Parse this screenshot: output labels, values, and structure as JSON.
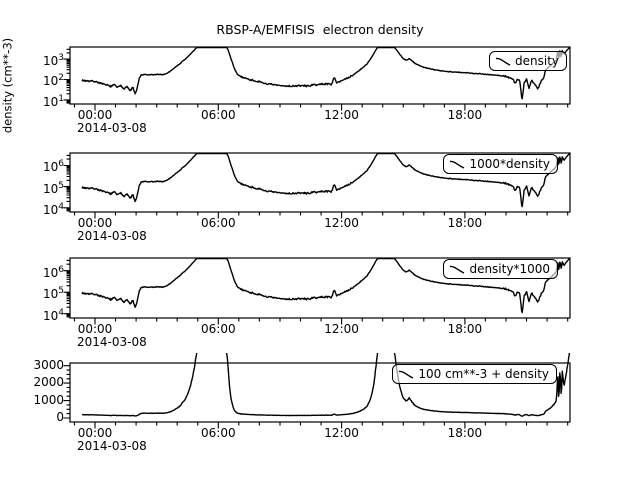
{
  "title": "RBSP-A/EMFISIS  electron density",
  "ylabel": "density (cm**-3)",
  "date_label": "2014-03-08",
  "colors": {
    "line": "#000000",
    "frame": "#000000",
    "background": "#ffffff",
    "text": "#000000",
    "legend_border": "#000000",
    "legend_bg": "rgba(255,255,255,0.62)",
    "curve_under_legend_appears": "#9a9a9a"
  },
  "x_axis": {
    "major_ticks": [
      {
        "t": 0,
        "label": "00:00"
      },
      {
        "t": 6,
        "label": "06:00"
      },
      {
        "t": 12,
        "label": "12:00"
      },
      {
        "t": 18,
        "label": "18:00"
      }
    ],
    "minor_step_hours": 1,
    "t_min": -1.217,
    "t_max": 23.114
  },
  "panels": [
    {
      "legend_label": "density",
      "scale": "log",
      "p_min": 6.3,
      "p_max": 3900,
      "mult": 1,
      "add": 0,
      "y_ticks": [
        {
          "p": 10,
          "label": "10^1"
        },
        {
          "p": 100,
          "label": "10^2"
        },
        {
          "p": 1000,
          "label": "10^3"
        }
      ]
    },
    {
      "legend_label": "1000*density",
      "scale": "log",
      "p_min": 6300,
      "p_max": 3900000,
      "mult": 1000,
      "add": 0,
      "y_ticks": [
        {
          "p": 10000,
          "label": "10^4"
        },
        {
          "p": 100000,
          "label": "10^5"
        },
        {
          "p": 1000000,
          "label": "10^6"
        }
      ]
    },
    {
      "legend_label": "density*1000",
      "scale": "log",
      "p_min": 6300,
      "p_max": 3900000,
      "mult": 1000,
      "add": 0,
      "y_ticks": [
        {
          "p": 10000,
          "label": "10^4"
        },
        {
          "p": 100000,
          "label": "10^5"
        },
        {
          "p": 1000000,
          "label": "10^6"
        }
      ]
    },
    {
      "legend_label": "100 cm**-3 + density",
      "scale": "linear",
      "p_min": -230,
      "p_max": 3155,
      "mult": 1,
      "add": 100,
      "minor_step": 250,
      "y_ticks": [
        {
          "p": 0,
          "label": "0"
        },
        {
          "p": 1000,
          "label": "1000"
        },
        {
          "p": 2000,
          "label": "2000"
        },
        {
          "p": 3000,
          "label": "3000"
        }
      ]
    }
  ],
  "chart_data": {
    "type": "line",
    "title": "RBSP-A/EMFISIS  electron density",
    "x_label": "2014-03-08",
    "x_tick_labels": [
      "00:00",
      "06:00",
      "12:00",
      "18:00"
    ],
    "x_unit": "hours (UT) on 2014-03-08",
    "grid": false,
    "legend_position": "top-right",
    "panels_description": [
      "density, log scale, ticks 10^1..10^3 cm**-3",
      "1000*density, log scale, ticks 10^4..10^6",
      "density*1000, log scale, ticks 10^4..10^6",
      "100 cm**-3 + density, linear scale, ticks 0..3000 (values above ~3100 clipped)"
    ],
    "series": [
      {
        "name": "density",
        "units": "cm**-3",
        "keypoints_t_hours_value": [
          [
            -0.63,
            90
          ],
          [
            -0.4,
            86
          ],
          [
            -0.2,
            84
          ],
          [
            0,
            80
          ],
          [
            0.2,
            70
          ],
          [
            0.4,
            58
          ],
          [
            0.6,
            52
          ],
          [
            0.8,
            46
          ],
          [
            0.95,
            56
          ],
          [
            1.1,
            40
          ],
          [
            1.25,
            50
          ],
          [
            1.4,
            36
          ],
          [
            1.55,
            46
          ],
          [
            1.7,
            28
          ],
          [
            1.85,
            42
          ],
          [
            1.95,
            19
          ],
          [
            2.05,
            35
          ],
          [
            2.15,
            110
          ],
          [
            2.25,
            165
          ],
          [
            2.4,
            175
          ],
          [
            2.6,
            165
          ],
          [
            2.75,
            175
          ],
          [
            2.9,
            168
          ],
          [
            3.1,
            180
          ],
          [
            3.3,
            172
          ],
          [
            3.5,
            200
          ],
          [
            3.65,
            250
          ],
          [
            3.8,
            330
          ],
          [
            3.95,
            430
          ],
          [
            4.1,
            560
          ],
          [
            4.25,
            750
          ],
          [
            4.4,
            1000
          ],
          [
            4.55,
            1400
          ],
          [
            4.7,
            2000
          ],
          [
            4.85,
            2900
          ],
          [
            5.0,
            4100
          ],
          [
            6.35,
            4100
          ],
          [
            6.45,
            3300
          ],
          [
            6.55,
            1700
          ],
          [
            6.65,
            850
          ],
          [
            6.75,
            420
          ],
          [
            6.85,
            240
          ],
          [
            6.95,
            170
          ],
          [
            7.1,
            140
          ],
          [
            7.3,
            118
          ],
          [
            7.5,
            100
          ],
          [
            7.8,
            86
          ],
          [
            8.1,
            70
          ],
          [
            8.5,
            58
          ],
          [
            9.0,
            50
          ],
          [
            9.5,
            47
          ],
          [
            10.0,
            50
          ],
          [
            10.35,
            48
          ],
          [
            10.7,
            55
          ],
          [
            11.0,
            58
          ],
          [
            11.3,
            62
          ],
          [
            11.5,
            58
          ],
          [
            11.65,
            125
          ],
          [
            11.75,
            72
          ],
          [
            11.9,
            82
          ],
          [
            12.1,
            95
          ],
          [
            12.3,
            115
          ],
          [
            12.5,
            150
          ],
          [
            12.7,
            210
          ],
          [
            12.9,
            300
          ],
          [
            13.1,
            430
          ],
          [
            13.3,
            700
          ],
          [
            13.5,
            1400
          ],
          [
            13.65,
            2600
          ],
          [
            13.78,
            4100
          ],
          [
            14.5,
            4100
          ],
          [
            14.6,
            3500
          ],
          [
            14.72,
            2400
          ],
          [
            14.85,
            1600
          ],
          [
            15.0,
            1060
          ],
          [
            15.15,
            880
          ],
          [
            15.3,
            1060
          ],
          [
            15.45,
            760
          ],
          [
            15.6,
            600
          ],
          [
            15.8,
            470
          ],
          [
            16.0,
            400
          ],
          [
            16.25,
            340
          ],
          [
            16.5,
            300
          ],
          [
            16.8,
            270
          ],
          [
            17.1,
            250
          ],
          [
            17.5,
            232
          ],
          [
            17.9,
            215
          ],
          [
            18.3,
            205
          ],
          [
            18.7,
            192
          ],
          [
            19.1,
            178
          ],
          [
            19.5,
            162
          ],
          [
            19.9,
            148
          ],
          [
            20.15,
            128
          ],
          [
            20.32,
            108
          ],
          [
            20.45,
            62
          ],
          [
            20.55,
            104
          ],
          [
            20.67,
            84
          ],
          [
            20.78,
            9
          ],
          [
            20.88,
            66
          ],
          [
            21.0,
            108
          ],
          [
            21.12,
            36
          ],
          [
            21.25,
            95
          ],
          [
            21.4,
            58
          ],
          [
            21.55,
            35
          ],
          [
            21.7,
            78
          ],
          [
            21.85,
            130
          ],
          [
            21.92,
            290
          ],
          [
            22.1,
            430
          ],
          [
            22.3,
            640
          ],
          [
            22.45,
            900
          ],
          [
            22.52,
            2800
          ],
          [
            22.57,
            950
          ],
          [
            22.63,
            3000
          ],
          [
            22.69,
            1150
          ],
          [
            22.74,
            2600
          ],
          [
            22.82,
            1750
          ],
          [
            22.92,
            2400
          ],
          [
            23.02,
            3100
          ],
          [
            23.11,
            3900
          ]
        ]
      }
    ]
  }
}
